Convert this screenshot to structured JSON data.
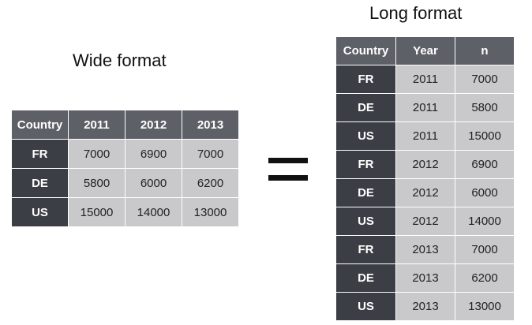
{
  "wide": {
    "title": "Wide format",
    "headers": [
      "Country",
      "2011",
      "2012",
      "2013"
    ],
    "rows": [
      {
        "country": "FR",
        "values": [
          "7000",
          "6900",
          "7000"
        ]
      },
      {
        "country": "DE",
        "values": [
          "5800",
          "6000",
          "6200"
        ]
      },
      {
        "country": "US",
        "values": [
          "15000",
          "14000",
          "13000"
        ]
      }
    ]
  },
  "equals": "=",
  "long": {
    "title": "Long format",
    "headers": [
      "Country",
      "Year",
      "n"
    ],
    "rows": [
      {
        "country": "FR",
        "year": "2011",
        "n": "7000"
      },
      {
        "country": "DE",
        "year": "2011",
        "n": "5800"
      },
      {
        "country": "US",
        "year": "2011",
        "n": "15000"
      },
      {
        "country": "FR",
        "year": "2012",
        "n": "6900"
      },
      {
        "country": "DE",
        "year": "2012",
        "n": "6000"
      },
      {
        "country": "US",
        "year": "2012",
        "n": "14000"
      },
      {
        "country": "FR",
        "year": "2013",
        "n": "7000"
      },
      {
        "country": "DE",
        "year": "2013",
        "n": "6200"
      },
      {
        "country": "US",
        "year": "2013",
        "n": "13000"
      }
    ]
  },
  "colors": {
    "header_bg": "#5e6068",
    "row_header_bg": "#3c3e45",
    "cell_bg": "#c9c9cb"
  }
}
